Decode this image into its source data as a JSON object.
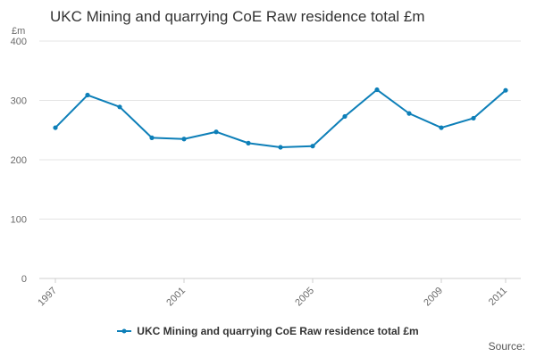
{
  "chart_data": {
    "type": "line",
    "title": "UKC Mining and quarrying CoE Raw residence total £m",
    "ylabel": "£m",
    "xlabel": "",
    "ylim": [
      0,
      400
    ],
    "yticks": [
      0,
      100,
      200,
      300,
      400
    ],
    "xticks": [
      1997,
      2001,
      2005,
      2009,
      2011
    ],
    "grid": true,
    "legend_position": "bottom-center",
    "series": [
      {
        "name": "UKC Mining and quarrying CoE Raw residence total £m",
        "color": "#0d7fb8",
        "x": [
          1997,
          1998,
          1999,
          2000,
          2001,
          2002,
          2003,
          2004,
          2005,
          2006,
          2007,
          2008,
          2009,
          2010,
          2011
        ],
        "values": [
          254,
          309,
          289,
          237,
          235,
          247,
          228,
          221,
          223,
          273,
          318,
          278,
          254,
          270,
          317
        ]
      }
    ]
  },
  "footer": {
    "source_label": "Source:"
  }
}
